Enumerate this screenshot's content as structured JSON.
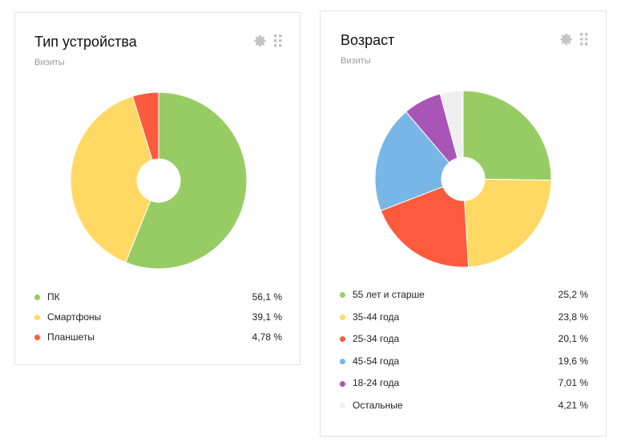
{
  "widgets": [
    {
      "title": "Тип устройства",
      "subtitle": "Визиты",
      "legend": [
        {
          "label": "ПК",
          "value": "56,1 %"
        },
        {
          "label": "Смартфоны",
          "value": "39,1 %"
        },
        {
          "label": "Планшеты",
          "value": "4,78 %"
        }
      ]
    },
    {
      "title": "Возраст",
      "subtitle": "Визиты",
      "legend": [
        {
          "label": "55 лет и старше",
          "value": "25,2 %"
        },
        {
          "label": "35-44 года",
          "value": "23,8 %"
        },
        {
          "label": "25-34 года",
          "value": "20,1 %"
        },
        {
          "label": "45-54 года",
          "value": "19,6 %"
        },
        {
          "label": "18-24 года",
          "value": "7,01 %"
        },
        {
          "label": "Остальные",
          "value": "4,21 %"
        }
      ]
    }
  ],
  "chart_data": [
    {
      "type": "pie",
      "title": "Тип устройства",
      "subtitle": "Визиты",
      "categories": [
        "ПК",
        "Смартфоны",
        "Планшеты"
      ],
      "values": [
        56.1,
        39.1,
        4.78
      ],
      "colors": [
        "#97cc64",
        "#ffd963",
        "#fd5a3e"
      ],
      "legend_position": "bottom"
    },
    {
      "type": "pie",
      "title": "Возраст",
      "subtitle": "Визиты",
      "categories": [
        "55 лет и старше",
        "35-44 года",
        "25-34 года",
        "45-54 года",
        "18-24 года",
        "Остальные"
      ],
      "values": [
        25.2,
        23.8,
        20.1,
        19.6,
        7.01,
        4.21
      ],
      "colors": [
        "#97cc64",
        "#ffd963",
        "#fd5a3e",
        "#77b6e7",
        "#a955b8",
        "#efefef"
      ],
      "legend_position": "bottom"
    }
  ]
}
